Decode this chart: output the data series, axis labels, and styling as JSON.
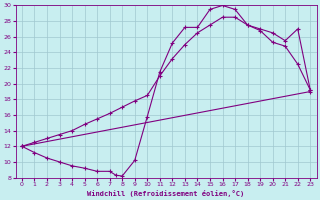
{
  "xlabel": "Windchill (Refroidissement éolien,°C)",
  "bg_color": "#c8eef0",
  "line_color": "#800080",
  "grid_color": "#a0c8d0",
  "xlim": [
    -0.5,
    23.5
  ],
  "ylim": [
    8,
    30
  ],
  "xticks": [
    0,
    1,
    2,
    3,
    4,
    5,
    6,
    7,
    8,
    9,
    10,
    11,
    12,
    13,
    14,
    15,
    16,
    17,
    18,
    19,
    20,
    21,
    22,
    23
  ],
  "yticks": [
    8,
    10,
    12,
    14,
    16,
    18,
    20,
    22,
    24,
    26,
    28,
    30
  ],
  "line1_x": [
    0,
    1,
    2,
    3,
    4,
    5,
    6,
    7,
    7.5,
    8,
    9,
    10,
    11,
    12,
    13,
    14,
    15,
    16,
    17,
    18,
    19,
    20,
    21,
    22,
    23
  ],
  "line1_y": [
    12,
    11.2,
    10.5,
    10,
    9.5,
    9.2,
    8.8,
    8.8,
    8.3,
    8.2,
    10.2,
    15.8,
    21.5,
    25.2,
    27.2,
    27.2,
    29.5,
    30,
    29.5,
    27.5,
    26.8,
    25.3,
    24.8,
    22.5,
    19.2
  ],
  "line2_x": [
    0,
    1,
    2,
    3,
    4,
    5,
    6,
    7,
    8,
    9,
    10,
    11,
    12,
    13,
    14,
    15,
    16,
    17,
    18,
    19,
    20,
    21,
    22,
    23
  ],
  "line2_y": [
    12,
    12.5,
    13,
    13.5,
    14,
    14.8,
    15.5,
    16.2,
    17,
    17.8,
    18.5,
    21,
    23.2,
    25,
    26.5,
    27.5,
    28.5,
    28.5,
    27.5,
    27,
    26.5,
    25.5,
    27,
    19.2
  ],
  "line3_x": [
    0,
    23
  ],
  "line3_y": [
    12,
    19
  ]
}
